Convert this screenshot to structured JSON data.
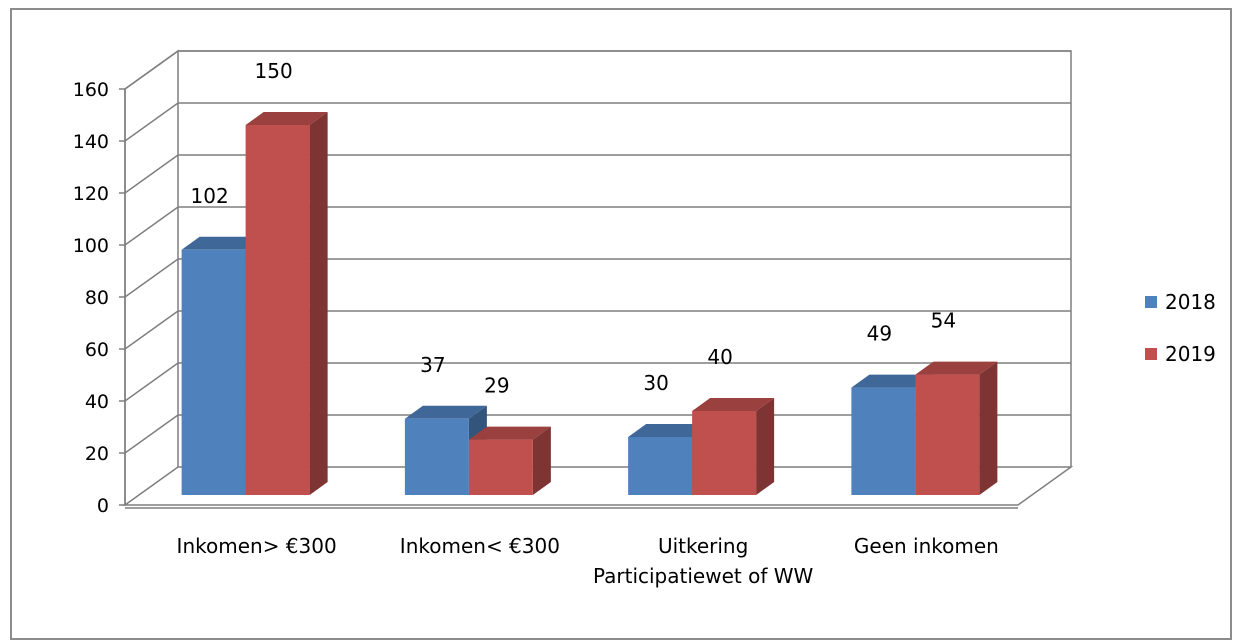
{
  "chart_data": {
    "type": "bar",
    "categories": [
      "Inkomen> €300",
      "Inkomen< €300",
      "Uitkering Participatiewet of WW",
      "Geen inkomen"
    ],
    "series": [
      {
        "name": "2018",
        "values": [
          102,
          37,
          30,
          49
        ],
        "color": "#4f81bd"
      },
      {
        "name": "2019",
        "values": [
          150,
          29,
          40,
          54
        ],
        "color": "#c0504d"
      }
    ],
    "y_ticks": [
      "0",
      "20",
      "40",
      "60",
      "80",
      "100",
      "120",
      "140",
      "160"
    ],
    "ylim": [
      0,
      160
    ],
    "grid": true,
    "legend_position": "right",
    "style": "3d-clustered-column"
  }
}
